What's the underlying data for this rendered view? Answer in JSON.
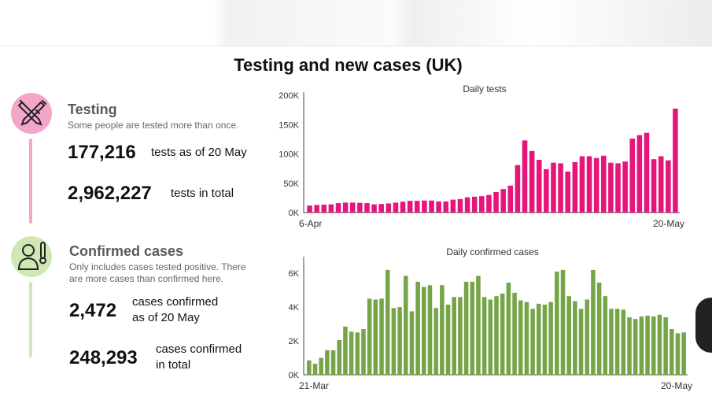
{
  "title": "Testing and new cases (UK)",
  "testing": {
    "heading": "Testing",
    "description": "Some people are tested more than once.",
    "stat1_value": "177,216",
    "stat1_label": "tests as of 20 May",
    "stat2_value": "2,962,227",
    "stat2_label": "tests in total"
  },
  "cases": {
    "heading": "Confirmed cases",
    "description_line1": "Only includes cases tested positive. There",
    "description_line2": "are more cases than confirmed here.",
    "stat1_value": "2,472",
    "stat1_label_line1": "cases confirmed",
    "stat1_label_line2": "as of 20 May",
    "stat2_value": "248,293",
    "stat2_label_line1": "cases confirmed",
    "stat2_label_line2": "in total"
  },
  "colors": {
    "testing_accent": "#e6157a",
    "cases_accent": "#76a548",
    "testing_circle": "#f3a6c9",
    "cases_circle": "#cfe8b4"
  },
  "chart_data": [
    {
      "type": "bar",
      "title": "Daily tests",
      "x_start_label": "6-Apr",
      "x_end_label": "20-May",
      "ylim": [
        0,
        200000
      ],
      "yticks": [
        0,
        50000,
        100000,
        150000,
        200000
      ],
      "ytick_labels": [
        "0K",
        "50K",
        "100K",
        "150K",
        "200K"
      ],
      "values": [
        12000,
        13000,
        13500,
        14000,
        16000,
        17000,
        17000,
        16500,
        16000,
        14000,
        14500,
        15500,
        17000,
        18500,
        20000,
        20000,
        20500,
        20500,
        19000,
        19000,
        22000,
        23000,
        26000,
        27000,
        28000,
        30000,
        35000,
        40000,
        46000,
        81000,
        123000,
        105000,
        90000,
        74000,
        85000,
        84000,
        70000,
        86000,
        96000,
        96000,
        93000,
        97000,
        85000,
        84000,
        87000,
        126000,
        132000,
        136000,
        91000,
        96000,
        89000,
        177216
      ],
      "color": "#e6157a"
    },
    {
      "type": "bar",
      "title": "Daily confirmed cases",
      "x_start_label": "21-Mar",
      "x_end_label": "20-May",
      "ylim": [
        0,
        6800
      ],
      "yticks": [
        0,
        2000,
        4000,
        6000
      ],
      "ytick_labels": [
        "0K",
        "2K",
        "4K",
        "6K"
      ],
      "values": [
        850,
        650,
        1000,
        1450,
        1450,
        2050,
        2850,
        2550,
        2500,
        2700,
        4500,
        4450,
        4500,
        6200,
        3950,
        4000,
        5850,
        3750,
        5500,
        5200,
        5300,
        3950,
        5300,
        4150,
        4600,
        4600,
        5500,
        5500,
        5850,
        4600,
        4450,
        4650,
        4800,
        5450,
        4850,
        4400,
        4300,
        3900,
        4200,
        4150,
        4300,
        6100,
        6200,
        4650,
        4350,
        3900,
        4450,
        6200,
        5450,
        4650,
        3900,
        3900,
        3850,
        3400,
        3300,
        3450,
        3500,
        3450,
        3550,
        3400,
        2700,
        2450,
        2500
      ],
      "color": "#76a548"
    }
  ]
}
